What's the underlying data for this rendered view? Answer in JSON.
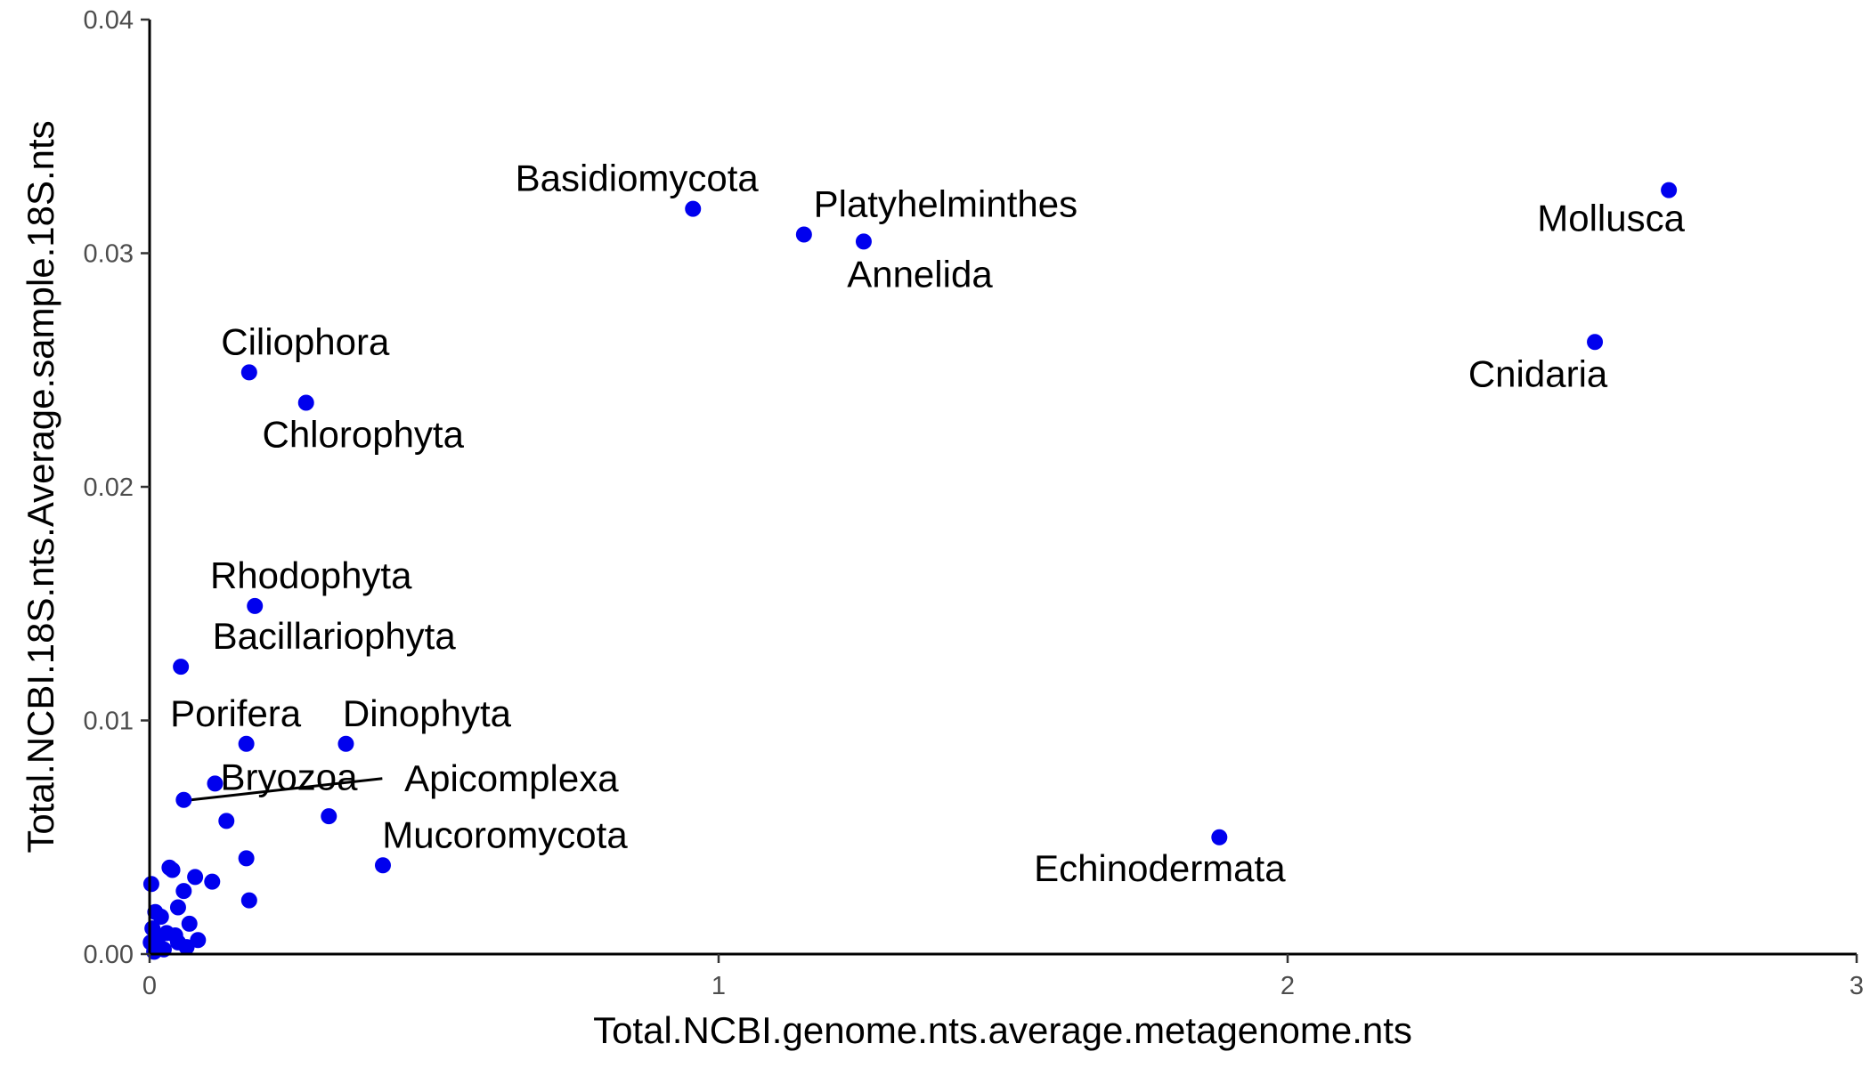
{
  "chart_data": {
    "type": "scatter",
    "xlabel": "Total.NCBI.genome.nts.average.metagenome.nts",
    "ylabel": "Total.NCBI.18S.nts.Average.sample.18S.nts",
    "xlim": [
      0,
      3
    ],
    "ylim": [
      0,
      0.04
    ],
    "x_ticks": [
      0,
      1,
      2,
      3
    ],
    "x_tick_labels": [
      "0",
      "1",
      "2",
      "3"
    ],
    "y_ticks": [
      0,
      0.01,
      0.02,
      0.03,
      0.04
    ],
    "y_tick_labels": [
      "0.00",
      "0.01",
      "0.02",
      "0.03",
      "0.04"
    ],
    "grid": false,
    "point_color": "#0000ee",
    "points": [
      {
        "x": 2.67,
        "y": 0.0327,
        "label": "Mollusca"
      },
      {
        "x": 2.54,
        "y": 0.0262,
        "label": "Cnidaria"
      },
      {
        "x": 0.955,
        "y": 0.0319,
        "label": "Basidiomycota"
      },
      {
        "x": 1.15,
        "y": 0.0308,
        "label": "Platyhelminthes"
      },
      {
        "x": 1.255,
        "y": 0.0305,
        "label": "Annelida"
      },
      {
        "x": 0.175,
        "y": 0.0249,
        "label": "Ciliophora"
      },
      {
        "x": 0.275,
        "y": 0.0236,
        "label": "Chlorophyta"
      },
      {
        "x": 0.185,
        "y": 0.0149,
        "label": "Rhodophyta"
      },
      {
        "x": 0.055,
        "y": 0.0123,
        "label": "Bacillariophyta"
      },
      {
        "x": 0.17,
        "y": 0.009,
        "label": "Porifera"
      },
      {
        "x": 0.345,
        "y": 0.009,
        "label": "Dinophyta"
      },
      {
        "x": 0.06,
        "y": 0.0066,
        "label": "Apicomplexa"
      },
      {
        "x": 0.115,
        "y": 0.0073,
        "label": "Bryozoa"
      },
      {
        "x": 0.41,
        "y": 0.0038,
        "label": "Mucoromycota"
      },
      {
        "x": 1.88,
        "y": 0.005,
        "label": "Echinodermata"
      },
      {
        "x": 0.135,
        "y": 0.0057,
        "label": ""
      },
      {
        "x": 0.315,
        "y": 0.0059,
        "label": ""
      },
      {
        "x": 0.17,
        "y": 0.0041,
        "label": ""
      },
      {
        "x": 0.035,
        "y": 0.0037,
        "label": ""
      },
      {
        "x": 0.04,
        "y": 0.0036,
        "label": ""
      },
      {
        "x": 0.08,
        "y": 0.0033,
        "label": ""
      },
      {
        "x": 0.11,
        "y": 0.0031,
        "label": ""
      },
      {
        "x": 0.003,
        "y": 0.003,
        "label": ""
      },
      {
        "x": 0.06,
        "y": 0.0027,
        "label": ""
      },
      {
        "x": 0.175,
        "y": 0.0023,
        "label": ""
      },
      {
        "x": 0.05,
        "y": 0.002,
        "label": ""
      },
      {
        "x": 0.01,
        "y": 0.0018,
        "label": ""
      },
      {
        "x": 0.02,
        "y": 0.0016,
        "label": ""
      },
      {
        "x": 0.07,
        "y": 0.0013,
        "label": ""
      },
      {
        "x": 0.005,
        "y": 0.0011,
        "label": ""
      },
      {
        "x": 0.03,
        "y": 0.0009,
        "label": ""
      },
      {
        "x": 0.045,
        "y": 0.0008,
        "label": ""
      },
      {
        "x": 0.015,
        "y": 0.0007,
        "label": ""
      },
      {
        "x": 0.085,
        "y": 0.0006,
        "label": ""
      },
      {
        "x": 0.05,
        "y": 0.0005,
        "label": ""
      },
      {
        "x": 0.002,
        "y": 0.0005,
        "label": ""
      },
      {
        "x": 0.065,
        "y": 0.0003,
        "label": ""
      },
      {
        "x": 0.025,
        "y": 0.0002,
        "label": ""
      },
      {
        "x": 0.008,
        "y": 0.0001,
        "label": ""
      }
    ]
  }
}
